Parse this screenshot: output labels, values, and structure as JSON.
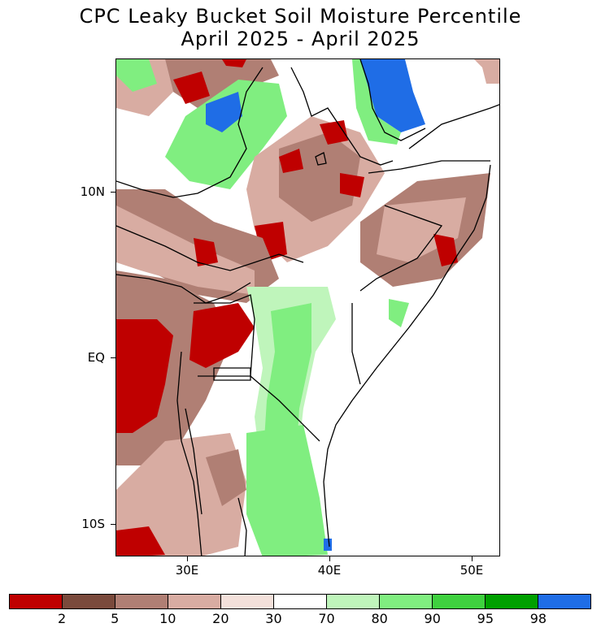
{
  "title": {
    "line1": "CPC Leaky Bucket Soil Moisture Percentile",
    "line2": "April 2025 - April 2025"
  },
  "axes": {
    "lat_labels": [
      "10N",
      "EQ",
      "10S"
    ],
    "lon_labels": [
      "30E",
      "40E",
      "50E"
    ]
  },
  "legend": {
    "colors": [
      "#bf0000",
      "#7a4a3c",
      "#b07f74",
      "#d8aca2",
      "#f3e0da",
      "#ffffff",
      "#bff5bb",
      "#80ee80",
      "#3fd13f",
      "#00a000",
      "#1f6de6"
    ],
    "labels": [
      "2",
      "5",
      "10",
      "20",
      "30",
      "70",
      "80",
      "90",
      "95",
      "98"
    ]
  },
  "map": {
    "region": "East Africa",
    "colors": {
      "dark_red": "#bf0000",
      "brown": "#b07f74",
      "tan": "#d8aca2",
      "light_pink": "#f3e0da",
      "light_green": "#bff5bb",
      "green": "#80ee80",
      "medium_green": "#3fd13f",
      "blue": "#1f6de6",
      "land_border": "#000000"
    }
  }
}
